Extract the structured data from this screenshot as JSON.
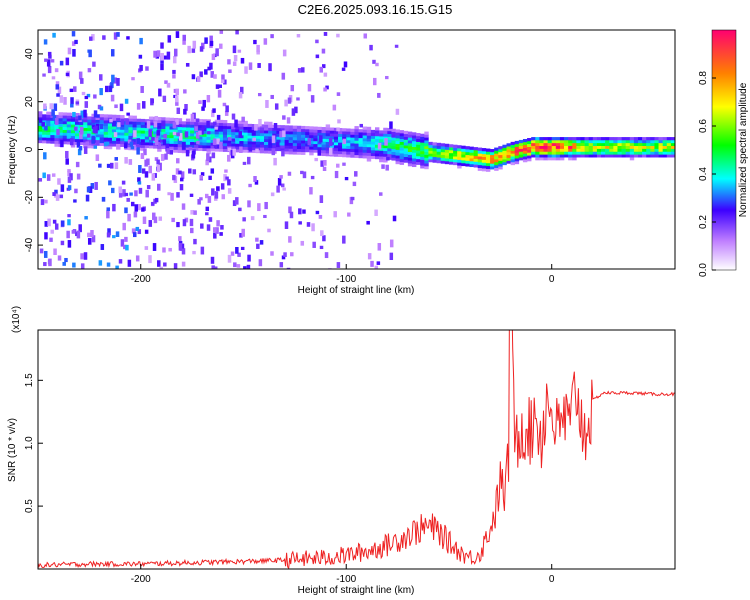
{
  "title": "C2E6.2025.093.16.15.G15",
  "chart_data": [
    {
      "type": "heatmap",
      "xlabel": "Height of straight line (km)",
      "ylabel": "Frequency (Hz)",
      "xlim": [
        -250,
        60
      ],
      "ylim": [
        -50,
        50
      ],
      "xticks": [
        -200,
        -100,
        0
      ],
      "yticks": [
        -40,
        -20,
        0,
        20,
        40
      ],
      "ridge": {
        "x": [
          -250,
          -200,
          -180,
          -150,
          -120,
          -100,
          -80,
          -60,
          -50,
          -40,
          -30,
          -20,
          -10,
          0,
          10,
          20,
          40,
          60
        ],
        "frequency": [
          9,
          7,
          6,
          5,
          4,
          3,
          2,
          -1,
          -2,
          -3,
          -4,
          -1,
          1,
          1,
          1,
          1,
          1,
          1
        ],
        "amplitude": [
          0.45,
          0.42,
          0.45,
          0.35,
          0.32,
          0.35,
          0.45,
          0.55,
          0.65,
          0.75,
          0.8,
          0.85,
          0.9,
          0.95,
          0.8,
          0.65,
          0.65,
          0.65
        ]
      },
      "colorbar": {
        "label": "Normalized spectral amplitude",
        "range": [
          0,
          1
        ],
        "ticks": [
          0.0,
          0.2,
          0.4,
          0.6,
          0.8
        ]
      }
    },
    {
      "type": "line",
      "xlabel": "Height of straight line (km)",
      "ylabel": "SNR (10 * v/v)",
      "multiplier_label": "(x10⁴)",
      "xlim": [
        -250,
        60
      ],
      "ylim": [
        0,
        1.9
      ],
      "xticks": [
        -200,
        -100,
        0
      ],
      "yticks": [
        0.5,
        1.0,
        1.5
      ],
      "series": [
        {
          "color": "#ee2222",
          "x": [
            -250,
            -225,
            -200,
            -175,
            -150,
            -130,
            -120,
            -110,
            -100,
            -90,
            -80,
            -75,
            -70,
            -65,
            -60,
            -55,
            -50,
            -45,
            -40,
            -35,
            -30,
            -27,
            -25,
            -23,
            -21,
            -20,
            -18,
            -15,
            -12,
            -10,
            -8,
            -5,
            -3,
            0,
            3,
            6,
            9,
            12,
            15,
            18,
            20,
            25,
            30,
            40,
            50,
            60
          ],
          "values": [
            0.03,
            0.04,
            0.04,
            0.05,
            0.06,
            0.07,
            0.08,
            0.09,
            0.11,
            0.14,
            0.19,
            0.23,
            0.27,
            0.31,
            0.34,
            0.3,
            0.21,
            0.14,
            0.09,
            0.12,
            0.32,
            0.48,
            0.7,
            0.6,
            0.85,
            1.9,
            0.98,
            1.12,
            1.18,
            1.06,
            1.28,
            1.02,
            1.32,
            1.28,
            1.06,
            1.22,
            1.1,
            1.48,
            1.1,
            1.18,
            1.34,
            1.4,
            1.4,
            1.4,
            1.39,
            1.39
          ]
        }
      ]
    }
  ]
}
